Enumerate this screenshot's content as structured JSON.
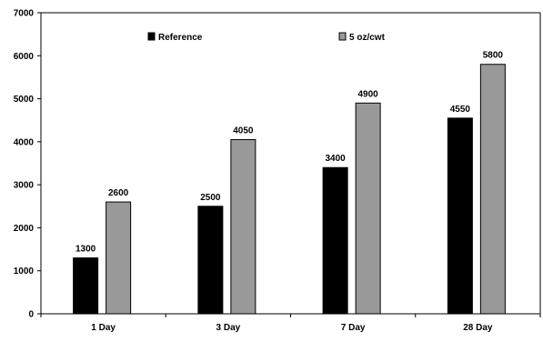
{
  "chart_data": {
    "type": "bar",
    "categories": [
      "1 Day",
      "3 Day",
      "7 Day",
      "28 Day"
    ],
    "series": [
      {
        "name": "Reference",
        "values": [
          1300,
          2500,
          3400,
          4550
        ],
        "color": "#000000",
        "labels": [
          "1300",
          "2500",
          "3400",
          "4550"
        ]
      },
      {
        "name": "5 oz/cwt",
        "values": [
          2600,
          4050,
          4900,
          5800
        ],
        "color": "#999999",
        "labels": [
          "2600",
          "4050",
          "4900",
          "5800"
        ]
      }
    ],
    "ylim": [
      0,
      7000
    ],
    "yticks": [
      0,
      1000,
      2000,
      3000,
      4000,
      5000,
      6000,
      7000
    ],
    "ytick_labels": [
      "0",
      "1000",
      "2000",
      "3000",
      "4000",
      "5000",
      "6000",
      "7000"
    ],
    "xlabel": "",
    "ylabel": "",
    "title": "",
    "grid": false,
    "legend_position": "top"
  }
}
